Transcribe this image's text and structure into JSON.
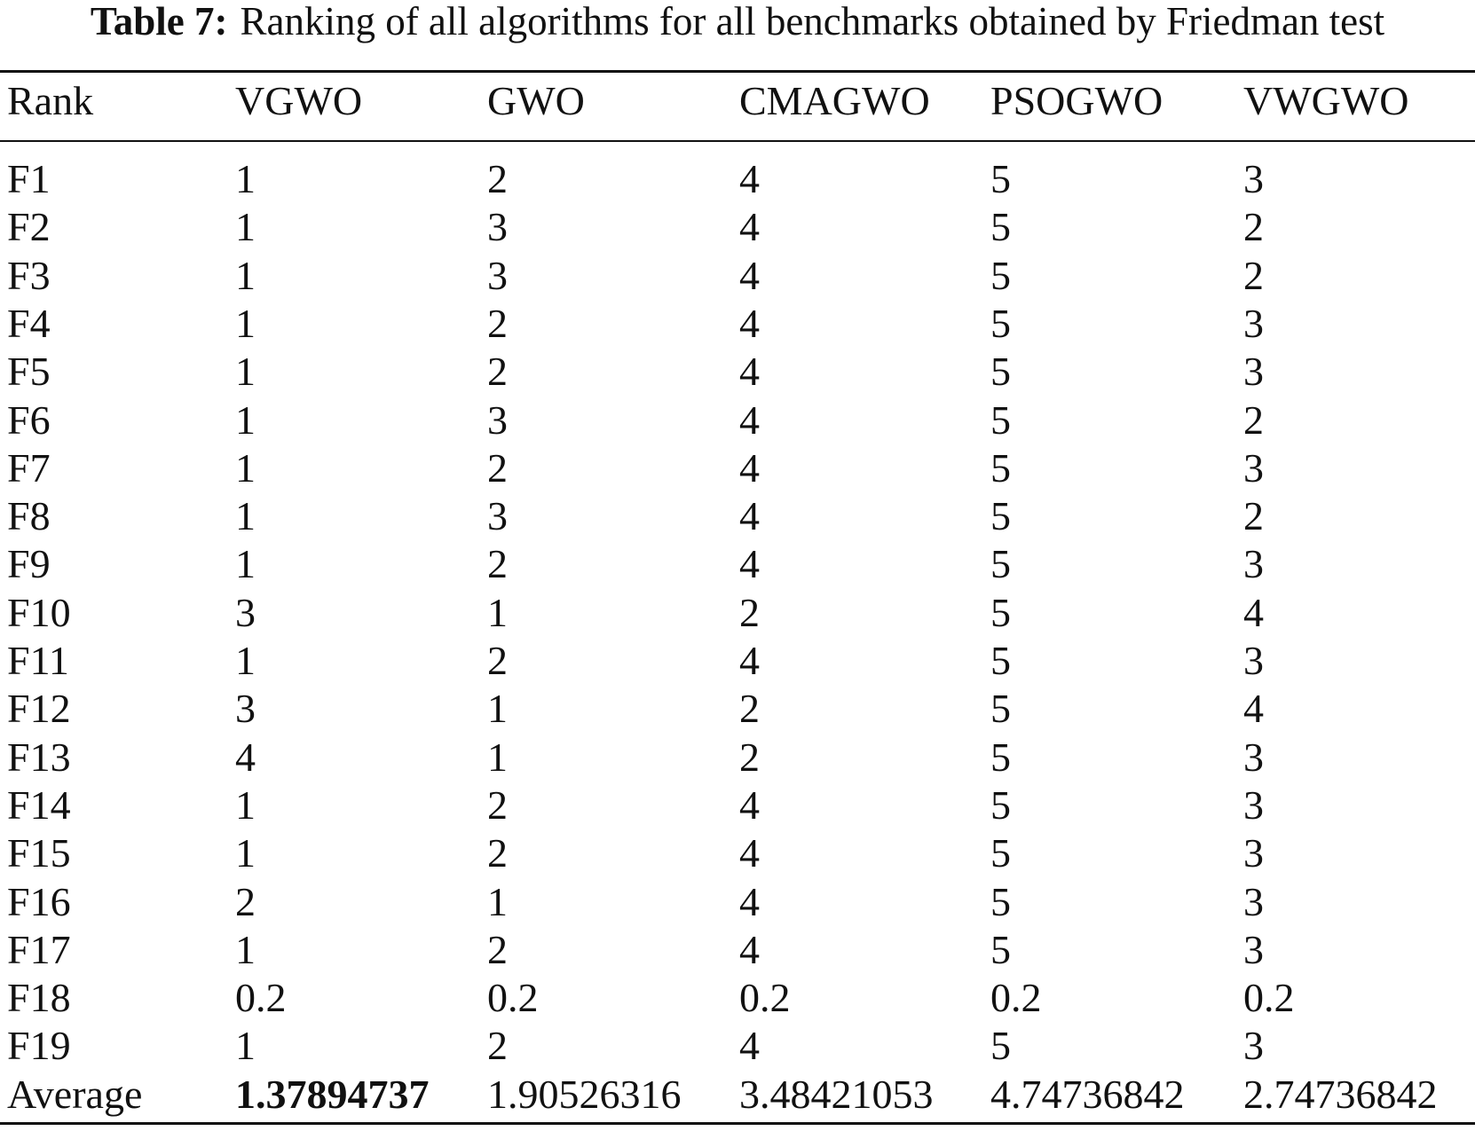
{
  "caption": {
    "label": "Table 7:",
    "text": "Ranking of all algorithms for all benchmarks obtained by Friedman test"
  },
  "table": {
    "header": [
      "Rank",
      "VGWO",
      "GWO",
      "CMAGWO",
      "PSOGWO",
      "VWGWO"
    ],
    "rows": [
      [
        "F1",
        1,
        2,
        4,
        5,
        3
      ],
      [
        "F2",
        1,
        3,
        4,
        5,
        2
      ],
      [
        "F3",
        1,
        3,
        4,
        5,
        2
      ],
      [
        "F4",
        1,
        2,
        4,
        5,
        3
      ],
      [
        "F5",
        1,
        2,
        4,
        5,
        3
      ],
      [
        "F6",
        1,
        3,
        4,
        5,
        2
      ],
      [
        "F7",
        1,
        2,
        4,
        5,
        3
      ],
      [
        "F8",
        1,
        3,
        4,
        5,
        2
      ],
      [
        "F9",
        1,
        2,
        4,
        5,
        3
      ],
      [
        "F10",
        3,
        1,
        2,
        5,
        4
      ],
      [
        "F11",
        1,
        2,
        4,
        5,
        3
      ],
      [
        "F12",
        3,
        1,
        2,
        5,
        4
      ],
      [
        "F13",
        4,
        1,
        2,
        5,
        3
      ],
      [
        "F14",
        1,
        2,
        4,
        5,
        3
      ],
      [
        "F15",
        1,
        2,
        4,
        5,
        3
      ],
      [
        "F16",
        2,
        1,
        4,
        5,
        3
      ],
      [
        "F17",
        1,
        2,
        4,
        5,
        3
      ],
      [
        "F18",
        0.2,
        0.2,
        0.2,
        0.2,
        0.2
      ],
      [
        "F19",
        1,
        2,
        4,
        5,
        3
      ]
    ],
    "average": [
      "Average",
      1.37894737,
      1.90526316,
      3.48421053,
      4.74736842,
      2.74736842
    ]
  }
}
